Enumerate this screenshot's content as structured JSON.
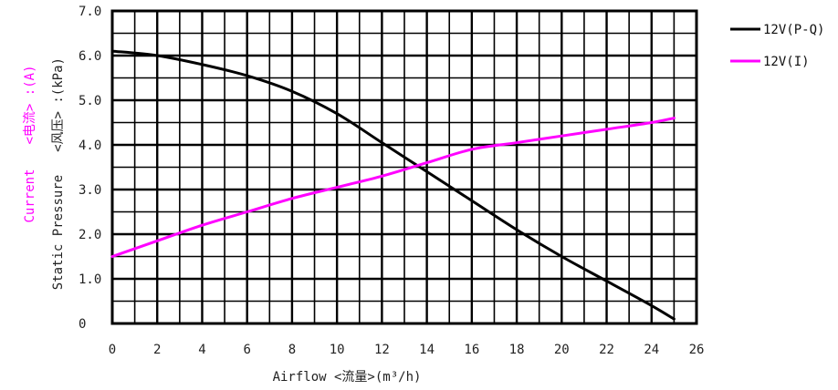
{
  "chart_data": {
    "type": "line",
    "title": "",
    "xlabel": "Airflow <流量>(m³/h)",
    "ylabel_left_lines": [
      "Current",
      "<电流> :(A)"
    ],
    "ylabel_right_lines": [
      "Static Pressure",
      "<风压> :(kPa)"
    ],
    "x_ticks": [
      "0",
      "2",
      "4",
      "6",
      "8",
      "10",
      "12",
      "14",
      "16",
      "18",
      "20",
      "22",
      "24",
      "26"
    ],
    "y_ticks": [
      "0",
      "1.0",
      "2.0",
      "3.0",
      "4.0",
      "5.0",
      "6.0",
      "7.0"
    ],
    "xlim": [
      0,
      26
    ],
    "ylim": [
      0,
      7
    ],
    "grid": true,
    "legend_position": "right",
    "series": [
      {
        "name": "12V(P-Q)",
        "color": "#000000",
        "x": [
          0,
          2,
          4,
          6,
          8,
          10,
          12,
          14,
          16,
          18,
          20,
          22,
          24,
          25
        ],
        "y": [
          6.1,
          6.0,
          5.8,
          5.55,
          5.2,
          4.7,
          4.05,
          3.4,
          2.75,
          2.1,
          1.5,
          0.95,
          0.4,
          0.1
        ]
      },
      {
        "name": "12V(I)",
        "color": "#ff00ff",
        "x": [
          0,
          2,
          4,
          6,
          8,
          10,
          12,
          14,
          16,
          18,
          20,
          22,
          24,
          25
        ],
        "y": [
          1.5,
          1.85,
          2.2,
          2.5,
          2.8,
          3.05,
          3.3,
          3.6,
          3.9,
          4.05,
          4.2,
          4.35,
          4.5,
          4.6
        ]
      }
    ]
  }
}
